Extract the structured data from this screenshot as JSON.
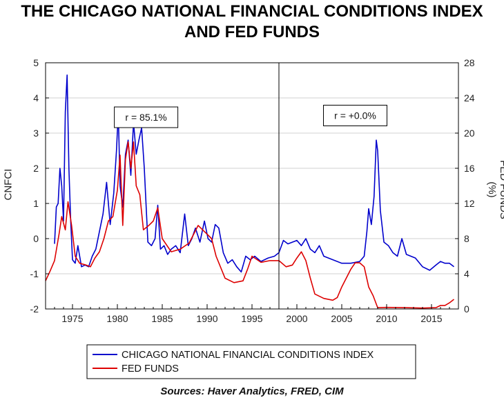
{
  "title_line1": "THE CHICAGO NATIONAL FINANCIAL CONDITIONS INDEX",
  "title_line2": "AND FED FUNDS",
  "source": "Sources:  Haver Analytics, FRED, CIM",
  "chart_data": {
    "type": "line",
    "ylabel_left": "CNFCI",
    "ylabel_right": "FED FUNDS (%)",
    "ylim_left": [
      -2,
      5
    ],
    "ylim_right": [
      0,
      28
    ],
    "left_ticks": [
      5,
      4,
      3,
      2,
      1,
      0,
      -1,
      -2
    ],
    "right_ticks": [
      28,
      24,
      20,
      16,
      12,
      8,
      4,
      0
    ],
    "xlim": [
      1972,
      2018
    ],
    "x_ticks": [
      1975,
      1980,
      1985,
      1990,
      1995,
      2000,
      2005,
      2010,
      2015
    ],
    "grid": true,
    "divider_year": 1998,
    "annotations": [
      {
        "text": "r = 85.1%",
        "x": 1983.2,
        "y": 3.45
      },
      {
        "text": "r = +0.0%",
        "x": 2006.5,
        "y": 3.5
      }
    ],
    "legend_position": "bottom",
    "colors": {
      "cnfci": "#0000CC",
      "fed": "#DD0000"
    },
    "series": [
      {
        "name": "CHICAGO NATIONAL FINANCIAL CONDITIONS INDEX",
        "axis": "left",
        "x": [
          1973.0,
          1973.2,
          1973.4,
          1973.6,
          1973.8,
          1974.0,
          1974.2,
          1974.4,
          1974.6,
          1974.8,
          1975.0,
          1975.3,
          1975.6,
          1976.0,
          1976.4,
          1976.8,
          1977.2,
          1977.6,
          1978.0,
          1978.4,
          1978.8,
          1979.2,
          1979.6,
          1979.9,
          1980.1,
          1980.3,
          1980.6,
          1980.9,
          1981.2,
          1981.5,
          1981.8,
          1982.1,
          1982.4,
          1982.7,
          1983.0,
          1983.4,
          1983.8,
          1984.2,
          1984.5,
          1984.8,
          1985.2,
          1985.6,
          1986.0,
          1986.5,
          1987.0,
          1987.5,
          1987.9,
          1988.3,
          1988.7,
          1989.2,
          1989.7,
          1990.1,
          1990.5,
          1990.9,
          1991.3,
          1991.8,
          1992.3,
          1992.8,
          1993.3,
          1993.8,
          1994.3,
          1994.8,
          1995.3,
          1996.0,
          1996.8,
          1997.5,
          1998.0,
          1998.5,
          1999.0,
          1999.5,
          2000.0,
          2000.5,
          2001.0,
          2001.5,
          2002.0,
          2002.5,
          2003.0,
          2004.0,
          2005.0,
          2006.0,
          2007.0,
          2007.5,
          2007.8,
          2008.0,
          2008.3,
          2008.6,
          2008.85,
          2009.0,
          2009.3,
          2009.7,
          2010.2,
          2010.7,
          2011.2,
          2011.7,
          2012.2,
          2012.7,
          2013.2,
          2014.0,
          2014.8,
          2015.5,
          2016.0,
          2016.5,
          2017.0,
          2017.5
        ],
        "values": [
          -0.15,
          0.9,
          1.0,
          2.0,
          1.5,
          0.5,
          3.6,
          4.65,
          2.0,
          0.5,
          -0.6,
          -0.7,
          -0.2,
          -0.8,
          -0.75,
          -0.8,
          -0.5,
          -0.3,
          0.2,
          0.7,
          1.6,
          0.4,
          1.3,
          2.5,
          3.6,
          1.5,
          0.9,
          2.4,
          2.8,
          1.8,
          3.3,
          2.4,
          2.8,
          3.15,
          2.0,
          -0.1,
          -0.2,
          0.0,
          0.95,
          -0.3,
          -0.2,
          -0.45,
          -0.3,
          -0.2,
          -0.4,
          0.7,
          -0.2,
          0.0,
          0.3,
          -0.1,
          0.5,
          0.0,
          -0.1,
          0.4,
          0.3,
          -0.4,
          -0.7,
          -0.6,
          -0.8,
          -0.95,
          -0.5,
          -0.6,
          -0.5,
          -0.65,
          -0.55,
          -0.5,
          -0.4,
          -0.05,
          -0.15,
          -0.1,
          -0.05,
          -0.2,
          0.0,
          -0.3,
          -0.4,
          -0.2,
          -0.5,
          -0.6,
          -0.7,
          -0.7,
          -0.65,
          -0.5,
          0.2,
          0.85,
          0.4,
          1.2,
          2.8,
          2.5,
          0.8,
          -0.1,
          -0.2,
          -0.4,
          -0.5,
          0.0,
          -0.45,
          -0.5,
          -0.55,
          -0.8,
          -0.9,
          -0.75,
          -0.65,
          -0.7,
          -0.7,
          -0.8
        ]
      },
      {
        "name": "FED FUNDS",
        "axis": "right",
        "x": [
          1972.0,
          1972.5,
          1973.0,
          1973.5,
          1973.8,
          1974.2,
          1974.5,
          1974.9,
          1975.3,
          1975.8,
          1976.5,
          1977.0,
          1977.5,
          1978.0,
          1978.5,
          1979.0,
          1979.5,
          1980.0,
          1980.3,
          1980.6,
          1980.9,
          1981.2,
          1981.5,
          1981.8,
          1982.1,
          1982.5,
          1982.9,
          1983.5,
          1984.0,
          1984.5,
          1985.0,
          1986.0,
          1987.0,
          1988.0,
          1989.0,
          1989.5,
          1990.0,
          1990.5,
          1991.0,
          1992.0,
          1993.0,
          1994.0,
          1994.5,
          1995.0,
          1996.0,
          1997.0,
          1998.0,
          1998.8,
          1999.5,
          2000.0,
          2000.5,
          2001.0,
          2001.5,
          2002.0,
          2003.0,
          2004.0,
          2004.5,
          2005.0,
          2006.0,
          2006.5,
          2007.0,
          2007.5,
          2008.0,
          2008.5,
          2009.0,
          2010.0,
          2012.0,
          2014.0,
          2015.5,
          2016.0,
          2016.5,
          2017.0,
          2017.5
        ],
        "values": [
          3.2,
          4.3,
          5.5,
          8.5,
          10.5,
          9.0,
          12.2,
          9.5,
          6.0,
          5.2,
          5.0,
          4.8,
          5.8,
          6.5,
          8.0,
          10.0,
          10.5,
          13.5,
          17.5,
          9.5,
          17.0,
          19.0,
          16.0,
          19.0,
          14.0,
          13.0,
          9.0,
          9.5,
          10.0,
          11.5,
          8.0,
          6.5,
          6.8,
          7.5,
          9.5,
          9.0,
          8.5,
          8.0,
          6.0,
          3.5,
          3.0,
          3.2,
          4.5,
          6.0,
          5.3,
          5.5,
          5.5,
          4.8,
          5.0,
          5.8,
          6.5,
          5.5,
          3.5,
          1.7,
          1.2,
          1.0,
          1.3,
          2.5,
          4.5,
          5.25,
          5.25,
          4.8,
          2.5,
          1.5,
          0.15,
          0.18,
          0.15,
          0.1,
          0.15,
          0.4,
          0.4,
          0.7,
          1.1
        ]
      }
    ]
  }
}
